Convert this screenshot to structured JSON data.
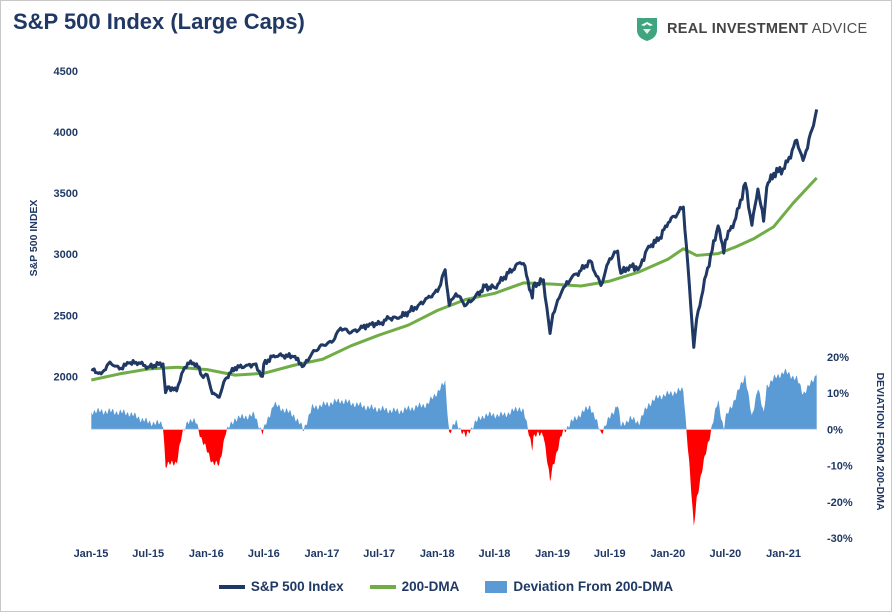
{
  "title": "S&P 500 Index (Large Caps)",
  "logo": {
    "icon": "eagle-shield-logo-icon",
    "bold_text": "REAL INVESTMENT",
    "text": " ADVICE"
  },
  "colors": {
    "title": "#1f3864",
    "index_line": "#1f3864",
    "dma_line": "#70ad47",
    "deviation_positive": "#5b9bd5",
    "deviation_negative": "#ff0000",
    "axis_text": "#1f3864",
    "logo_green": "#3ea57f"
  },
  "chart_data": {
    "type": "line",
    "title": "S&P 500 Index (Large Caps)",
    "xlabel": "",
    "ylabel": "S&P 500 INDEX",
    "y2label": "DEVIATION FROM 200-DMA",
    "x_range": [
      "2015-01",
      "2021-04"
    ],
    "x_ticks": [
      "Jan-15",
      "Jul-15",
      "Jan-16",
      "Jul-16",
      "Jan-17",
      "Jul-17",
      "Jan-18",
      "Jul-18",
      "Jan-19",
      "Jul-19",
      "Jan-20",
      "Jul-20",
      "Jan-21"
    ],
    "y_range": [
      1700,
      4500
    ],
    "y_ticks": [
      "2000",
      "2500",
      "3000",
      "3500",
      "4000",
      "4500"
    ],
    "y2_range": [
      -0.3,
      0.2
    ],
    "y2_ticks": [
      "20%",
      "10%",
      "0%",
      "-10%",
      "-20%",
      "-30%"
    ],
    "grid": false,
    "legend_position": "bottom",
    "series": [
      {
        "name": "S&P 500 Index",
        "type": "line",
        "points": [
          [
            "2015-01-02",
            2058
          ],
          [
            "2015-02-02",
            2020
          ],
          [
            "2015-03-02",
            2117
          ],
          [
            "2015-04-01",
            2060
          ],
          [
            "2015-05-01",
            2108
          ],
          [
            "2015-06-01",
            2111
          ],
          [
            "2015-07-01",
            2077
          ],
          [
            "2015-08-03",
            2098
          ],
          [
            "2015-08-17",
            2102
          ],
          [
            "2015-08-25",
            1867
          ],
          [
            "2015-09-01",
            1914
          ],
          [
            "2015-09-29",
            1881
          ],
          [
            "2015-10-15",
            2023
          ],
          [
            "2015-11-03",
            2109
          ],
          [
            "2015-12-01",
            2103
          ],
          [
            "2015-12-18",
            2005
          ],
          [
            "2016-01-04",
            2012
          ],
          [
            "2016-01-20",
            1859
          ],
          [
            "2016-02-11",
            1829
          ],
          [
            "2016-03-01",
            1978
          ],
          [
            "2016-04-01",
            2072
          ],
          [
            "2016-05-02",
            2081
          ],
          [
            "2016-06-01",
            2099
          ],
          [
            "2016-06-27",
            2000
          ],
          [
            "2016-07-01",
            2102
          ],
          [
            "2016-08-01",
            2170
          ],
          [
            "2016-09-01",
            2170
          ],
          [
            "2016-10-03",
            2161
          ],
          [
            "2016-11-04",
            2085
          ],
          [
            "2016-12-01",
            2191
          ],
          [
            "2017-01-03",
            2258
          ],
          [
            "2017-02-01",
            2279
          ],
          [
            "2017-03-01",
            2395
          ],
          [
            "2017-04-03",
            2358
          ],
          [
            "2017-05-01",
            2388
          ],
          [
            "2017-06-01",
            2430
          ],
          [
            "2017-07-03",
            2429
          ],
          [
            "2017-08-01",
            2476
          ],
          [
            "2017-09-01",
            2476
          ],
          [
            "2017-10-02",
            2529
          ],
          [
            "2017-11-01",
            2579
          ],
          [
            "2017-12-01",
            2642
          ],
          [
            "2018-01-02",
            2695
          ],
          [
            "2018-01-26",
            2873
          ],
          [
            "2018-02-08",
            2581
          ],
          [
            "2018-03-01",
            2677
          ],
          [
            "2018-04-02",
            2582
          ],
          [
            "2018-05-01",
            2654
          ],
          [
            "2018-06-01",
            2734
          ],
          [
            "2018-07-02",
            2726
          ],
          [
            "2018-08-01",
            2813
          ],
          [
            "2018-09-20",
            2931
          ],
          [
            "2018-10-01",
            2924
          ],
          [
            "2018-10-29",
            2641
          ],
          [
            "2018-11-01",
            2740
          ],
          [
            "2018-12-03",
            2790
          ],
          [
            "2018-12-24",
            2351
          ],
          [
            "2019-01-02",
            2510
          ],
          [
            "2019-02-01",
            2706
          ],
          [
            "2019-03-01",
            2803
          ],
          [
            "2019-04-01",
            2867
          ],
          [
            "2019-04-30",
            2946
          ],
          [
            "2019-06-03",
            2744
          ],
          [
            "2019-07-01",
            2964
          ],
          [
            "2019-07-26",
            3026
          ],
          [
            "2019-08-05",
            2844
          ],
          [
            "2019-09-03",
            2906
          ],
          [
            "2019-10-02",
            2887
          ],
          [
            "2019-11-01",
            3066
          ],
          [
            "2019-12-02",
            3113
          ],
          [
            "2020-01-02",
            3258
          ],
          [
            "2020-02-19",
            3386
          ],
          [
            "2020-03-09",
            2746
          ],
          [
            "2020-03-23",
            2237
          ],
          [
            "2020-04-01",
            2470
          ],
          [
            "2020-05-01",
            2830
          ],
          [
            "2020-06-08",
            3232
          ],
          [
            "2020-06-26",
            3009
          ],
          [
            "2020-07-01",
            3115
          ],
          [
            "2020-08-03",
            3294
          ],
          [
            "2020-09-02",
            3580
          ],
          [
            "2020-09-23",
            3237
          ],
          [
            "2020-10-12",
            3534
          ],
          [
            "2020-10-30",
            3270
          ],
          [
            "2020-11-09",
            3550
          ],
          [
            "2020-12-01",
            3662
          ],
          [
            "2021-01-04",
            3701
          ],
          [
            "2021-02-12",
            3934
          ],
          [
            "2021-03-04",
            3768
          ],
          [
            "2021-04-01",
            4019
          ],
          [
            "2021-04-16",
            4185
          ]
        ]
      },
      {
        "name": "200-DMA",
        "type": "line",
        "points": [
          [
            "2015-01-02",
            1970
          ],
          [
            "2015-04-01",
            2020
          ],
          [
            "2015-07-01",
            2060
          ],
          [
            "2015-10-01",
            2075
          ],
          [
            "2016-01-04",
            2055
          ],
          [
            "2016-04-01",
            2010
          ],
          [
            "2016-07-01",
            2025
          ],
          [
            "2016-10-03",
            2090
          ],
          [
            "2017-01-03",
            2140
          ],
          [
            "2017-04-03",
            2250
          ],
          [
            "2017-07-03",
            2340
          ],
          [
            "2017-10-02",
            2420
          ],
          [
            "2018-01-02",
            2540
          ],
          [
            "2018-04-02",
            2630
          ],
          [
            "2018-07-02",
            2680
          ],
          [
            "2018-10-01",
            2765
          ],
          [
            "2019-01-02",
            2755
          ],
          [
            "2019-04-01",
            2740
          ],
          [
            "2019-07-01",
            2780
          ],
          [
            "2019-10-02",
            2855
          ],
          [
            "2020-01-02",
            2960
          ],
          [
            "2020-02-19",
            3045
          ],
          [
            "2020-04-01",
            2990
          ],
          [
            "2020-06-08",
            3005
          ],
          [
            "2020-08-03",
            3060
          ],
          [
            "2020-10-01",
            3130
          ],
          [
            "2020-12-01",
            3225
          ],
          [
            "2021-02-01",
            3420
          ],
          [
            "2021-04-16",
            3625
          ]
        ]
      },
      {
        "name": "Deviation From 200-DMA",
        "type": "area",
        "axis": "y2",
        "points": [
          [
            "2015-01-02",
            0.05
          ],
          [
            "2015-03-02",
            0.05
          ],
          [
            "2015-05-01",
            0.045
          ],
          [
            "2015-07-01",
            0.02
          ],
          [
            "2015-08-17",
            0.015
          ],
          [
            "2015-08-25",
            -0.1
          ],
          [
            "2015-09-29",
            -0.09
          ],
          [
            "2015-10-15",
            -0.02
          ],
          [
            "2015-11-03",
            0.025
          ],
          [
            "2015-12-01",
            0.02
          ],
          [
            "2015-12-18",
            -0.03
          ],
          [
            "2016-01-20",
            -0.09
          ],
          [
            "2016-02-11",
            -0.1
          ],
          [
            "2016-03-01",
            -0.01
          ],
          [
            "2016-04-01",
            0.03
          ],
          [
            "2016-06-01",
            0.04
          ],
          [
            "2016-06-27",
            -0.01
          ],
          [
            "2016-08-01",
            0.07
          ],
          [
            "2016-10-03",
            0.04
          ],
          [
            "2016-11-04",
            0.0
          ],
          [
            "2016-12-01",
            0.06
          ],
          [
            "2017-03-01",
            0.08
          ],
          [
            "2017-06-01",
            0.06
          ],
          [
            "2017-09-01",
            0.05
          ],
          [
            "2017-12-01",
            0.07
          ],
          [
            "2018-01-26",
            0.13
          ],
          [
            "2018-02-08",
            -0.01
          ],
          [
            "2018-03-01",
            0.02
          ],
          [
            "2018-04-02",
            -0.02
          ],
          [
            "2018-05-01",
            0.02
          ],
          [
            "2018-06-01",
            0.04
          ],
          [
            "2018-08-01",
            0.04
          ],
          [
            "2018-09-20",
            0.06
          ],
          [
            "2018-10-01",
            0.05
          ],
          [
            "2018-10-29",
            -0.05
          ],
          [
            "2018-11-01",
            -0.02
          ],
          [
            "2018-12-03",
            -0.01
          ],
          [
            "2018-12-24",
            -0.145
          ],
          [
            "2019-01-02",
            -0.1
          ],
          [
            "2019-02-01",
            -0.01
          ],
          [
            "2019-03-01",
            0.02
          ],
          [
            "2019-04-30",
            0.065
          ],
          [
            "2019-06-03",
            -0.01
          ],
          [
            "2019-07-26",
            0.07
          ],
          [
            "2019-08-05",
            0.01
          ],
          [
            "2019-09-03",
            0.03
          ],
          [
            "2019-10-02",
            0.02
          ],
          [
            "2019-11-01",
            0.07
          ],
          [
            "2019-12-02",
            0.09
          ],
          [
            "2020-02-19",
            0.11
          ],
          [
            "2020-03-09",
            -0.1
          ],
          [
            "2020-03-23",
            -0.27
          ],
          [
            "2020-04-01",
            -0.19
          ],
          [
            "2020-05-01",
            -0.06
          ],
          [
            "2020-06-08",
            0.08
          ],
          [
            "2020-06-26",
            0.0
          ],
          [
            "2020-07-01",
            0.03
          ],
          [
            "2020-08-03",
            0.09
          ],
          [
            "2020-09-02",
            0.15
          ],
          [
            "2020-09-23",
            0.03
          ],
          [
            "2020-10-12",
            0.12
          ],
          [
            "2020-10-30",
            0.04
          ],
          [
            "2020-11-09",
            0.12
          ],
          [
            "2020-12-01",
            0.14
          ],
          [
            "2021-01-04",
            0.16
          ],
          [
            "2021-02-12",
            0.14
          ],
          [
            "2021-03-04",
            0.1
          ],
          [
            "2021-04-01",
            0.13
          ],
          [
            "2021-04-16",
            0.155
          ]
        ]
      }
    ]
  },
  "legend": [
    {
      "label": "S&P 500 Index",
      "swatch": "line",
      "color": "#1f3864"
    },
    {
      "label": "200-DMA",
      "swatch": "line",
      "color": "#70ad47"
    },
    {
      "label": "Deviation From 200-DMA",
      "swatch": "box",
      "color": "#5b9bd5"
    }
  ]
}
